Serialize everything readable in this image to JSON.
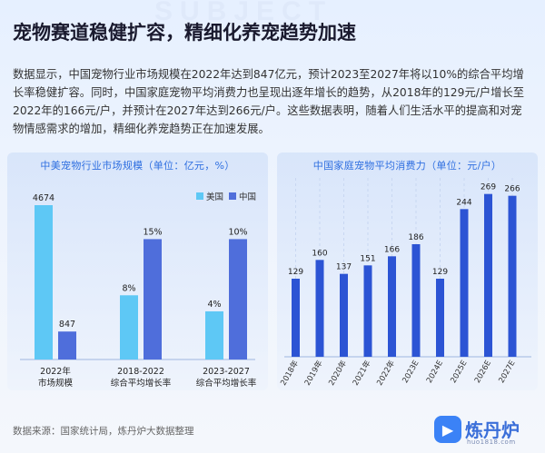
{
  "watermark": "SUBJECT",
  "title": "宠物赛道稳健扩容，精细化养宠趋势加速",
  "paragraph": "数据显示，中国宠物行业市场规模在2022年达到847亿元，预计2023至2027年将以10%的综合平均增长率稳健扩容。同时，中国家庭宠物平均消费力也呈现出逐年增长的趋势，从2018年的129元/户增长至2022年的166元/户，并预计在2027年达到266元/户。这些数据表明，随着人们生活水平的提高和对宠物情感需求的增加，精细化养宠趋势正在加速发展。",
  "footer": {
    "source": "数据来源：国家统计局，炼丹炉大数据整理",
    "logo_text": "炼丹炉",
    "logo_url": "huo1818.com"
  },
  "colors": {
    "us": "#5ec8f5",
    "cn": "#4f6edb",
    "consumption": "#2c54d4",
    "title_blue": "#2f6fe0"
  },
  "chart_data": [
    {
      "type": "bar",
      "title": "中美宠物行业市场规模（单位：亿元，%）",
      "categories": [
        "2022年\n市场规模",
        "2018-2022\n综合平均增长率",
        "2023-2027\n综合平均增长率"
      ],
      "series": [
        {
          "name": "美国",
          "values": [
            4674,
            8,
            4
          ],
          "labels": [
            "4674",
            "8%",
            "4%"
          ]
        },
        {
          "name": "中国",
          "values": [
            847,
            15,
            10
          ],
          "labels": [
            "847",
            "15%",
            "10%"
          ]
        }
      ],
      "legend": "top-right"
    },
    {
      "type": "bar",
      "title": "中国家庭宠物平均消费力（单位：元/户）",
      "categories": [
        "2018年",
        "2019年",
        "2020年",
        "2021年",
        "2022年",
        "2023E",
        "2024E",
        "2025E",
        "2026E",
        "2027E"
      ],
      "values": [
        129,
        160,
        137,
        151,
        166,
        186,
        129,
        244,
        269,
        266
      ],
      "ylim": [
        0,
        300
      ]
    }
  ]
}
